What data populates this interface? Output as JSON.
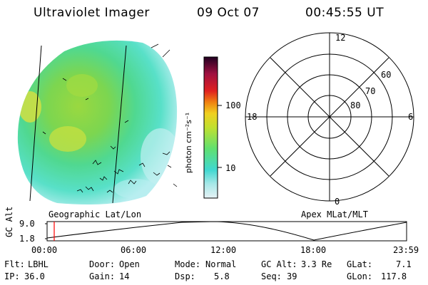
{
  "header": {
    "title": "Ultraviolet Imager",
    "date": "09 Oct 07",
    "time": "00:45:55 UT"
  },
  "image_panel": {
    "caption": "Geographic Lat/Lon"
  },
  "colorbar": {
    "unit": "photon cm⁻²s⁻¹",
    "ticks": [
      "100",
      "10"
    ],
    "scale": "log"
  },
  "polar_plot": {
    "caption": "Apex MLat/MLT",
    "mlt_labels": {
      "top": "12",
      "left": "18",
      "right": "6",
      "bottom": "0"
    },
    "lat_labels": [
      "60",
      "70",
      "80"
    ]
  },
  "altitude_strip": {
    "axis_label": "GC Alt",
    "y_ticks": [
      "9.0",
      "1.8"
    ],
    "x_ticks": [
      "00:00",
      "06:00",
      "12:00",
      "18:00",
      "23:59"
    ],
    "marker_color": "#ff0000"
  },
  "info": {
    "filter_label": "Flt:",
    "filter_value": "LBHL",
    "ip_label": "IP:",
    "ip_value": "36.0",
    "door_label": "Door:",
    "door_value": "Open",
    "gain_label": "Gain:",
    "gain_value": "14",
    "mode_label": "Mode:",
    "mode_value": "Normal",
    "dsp_label": "Dsp:",
    "dsp_value": "5.8",
    "gcalt_label": "GC Alt:",
    "gcalt_value": "3.3 Re",
    "seq_label": "Seq:",
    "seq_value": "39",
    "glat_label": "GLat:",
    "glat_value": "7.1",
    "glon_label": "GLon:",
    "glon_value": "117.8"
  },
  "colors": {
    "colorbar_stops": [
      "#e6f2f5",
      "#a8e8e8",
      "#40d8d0",
      "#60e070",
      "#c0e030",
      "#f0d020",
      "#f08010",
      "#e02020",
      "#a01040",
      "#200020"
    ]
  }
}
